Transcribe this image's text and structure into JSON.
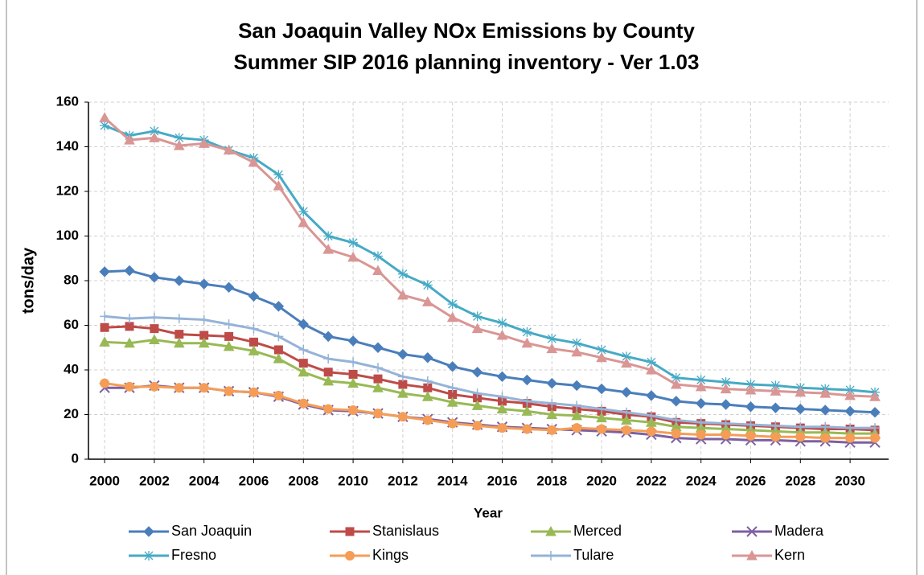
{
  "chart_data": {
    "type": "line",
    "title": [
      "San Joaquin Valley NOx Emissions by County",
      "Summer SIP 2016 planning inventory - Ver 1.03"
    ],
    "x_label": "Year",
    "y_label": "tons/day",
    "x": [
      2000,
      2001,
      2002,
      2003,
      2004,
      2005,
      2006,
      2007,
      2008,
      2009,
      2010,
      2011,
      2012,
      2013,
      2014,
      2015,
      2016,
      2017,
      2018,
      2019,
      2020,
      2021,
      2022,
      2023,
      2024,
      2025,
      2026,
      2027,
      2028,
      2029,
      2030,
      2031
    ],
    "xlim": [
      1999.35,
      2031.55
    ],
    "xticks": [
      2000,
      2002,
      2004,
      2006,
      2008,
      2010,
      2012,
      2014,
      2016,
      2018,
      2020,
      2022,
      2024,
      2026,
      2028,
      2030
    ],
    "ylim": [
      0,
      160
    ],
    "yticks": [
      0,
      20,
      40,
      60,
      80,
      100,
      120,
      140,
      160
    ],
    "grid": true,
    "series": [
      {
        "name": "San Joaquin",
        "color": "#4a7ebb",
        "marker": "diamond",
        "values": [
          84,
          84.5,
          81.5,
          80,
          78.5,
          77,
          73,
          68.5,
          60.5,
          55,
          53,
          50,
          47,
          45.5,
          41.5,
          39,
          37,
          35.5,
          34,
          33,
          31.5,
          30,
          28.5,
          26,
          25,
          24.5,
          23.5,
          23,
          22.5,
          22,
          21.5,
          21
        ]
      },
      {
        "name": "Stanislaus",
        "color": "#be4b48",
        "marker": "square",
        "values": [
          59,
          59.5,
          58.5,
          56,
          55.5,
          55,
          52.5,
          49,
          43,
          39,
          38,
          36,
          33.5,
          32,
          29,
          27.5,
          26,
          25,
          23.5,
          22.5,
          21.5,
          20,
          19,
          16.5,
          16,
          15.5,
          15,
          14.5,
          14,
          13.5,
          13.5,
          13
        ]
      },
      {
        "name": "Merced",
        "color": "#98b954",
        "marker": "triangle",
        "values": [
          52.5,
          52,
          53.5,
          52,
          52,
          50.5,
          48.5,
          45,
          39,
          35,
          34,
          32,
          29.5,
          28,
          25.5,
          24,
          22.5,
          21.5,
          20,
          19.5,
          18.5,
          17.5,
          16.5,
          14.5,
          14,
          13.5,
          13,
          12.5,
          12,
          12,
          11.5,
          11.5
        ]
      },
      {
        "name": "Madera",
        "color": "#7d60a0",
        "marker": "x",
        "values": [
          32,
          32,
          33,
          32,
          32,
          30.5,
          30,
          28,
          24.5,
          22,
          21.5,
          20.5,
          19,
          18,
          16.5,
          15.5,
          14.5,
          14,
          13.5,
          13,
          12.5,
          12,
          11,
          9.5,
          9,
          9,
          8.5,
          8.5,
          8,
          8,
          7.5,
          7.5
        ]
      },
      {
        "name": "Fresno",
        "color": "#46aac5",
        "marker": "star",
        "values": [
          149.5,
          145,
          147,
          144,
          143,
          138.5,
          135,
          127.5,
          111,
          100,
          97,
          91,
          83,
          78,
          69.5,
          64,
          61,
          57,
          54,
          52,
          49,
          46,
          43.5,
          36.5,
          35.5,
          34.5,
          33.5,
          33,
          32,
          31.5,
          31,
          30
        ]
      },
      {
        "name": "Kings",
        "color": "#f59d56",
        "marker": "circle",
        "values": [
          34,
          32.5,
          32.5,
          32,
          32,
          30.5,
          30,
          28.5,
          25,
          22.5,
          22,
          20.5,
          19,
          17.5,
          16,
          15,
          14,
          13.5,
          13,
          14,
          13.5,
          13,
          12.5,
          11.5,
          11,
          11,
          10.5,
          10,
          10,
          9.5,
          9.5,
          9.5
        ]
      },
      {
        "name": "Tulare",
        "color": "#95b3d7",
        "marker": "plus",
        "values": [
          64,
          63,
          63.5,
          63,
          62.5,
          60.5,
          58.5,
          55,
          49,
          45,
          43.5,
          41,
          37,
          35,
          32,
          29.5,
          28,
          26,
          25,
          24,
          22.5,
          21,
          19.5,
          17.5,
          16.5,
          16,
          15.5,
          15,
          14.5,
          14.5,
          14,
          14
        ]
      },
      {
        "name": "Kern",
        "color": "#d99694",
        "marker": "triangle",
        "values": [
          153,
          143,
          144,
          140.5,
          141.5,
          138.5,
          133,
          122.5,
          106,
          94,
          90.5,
          84.5,
          73.5,
          70.5,
          63.5,
          58.5,
          55.5,
          52,
          49.5,
          48,
          45.5,
          43,
          40,
          33.5,
          32.5,
          31.5,
          31,
          30.5,
          30,
          29.5,
          28.5,
          28
        ]
      }
    ]
  }
}
